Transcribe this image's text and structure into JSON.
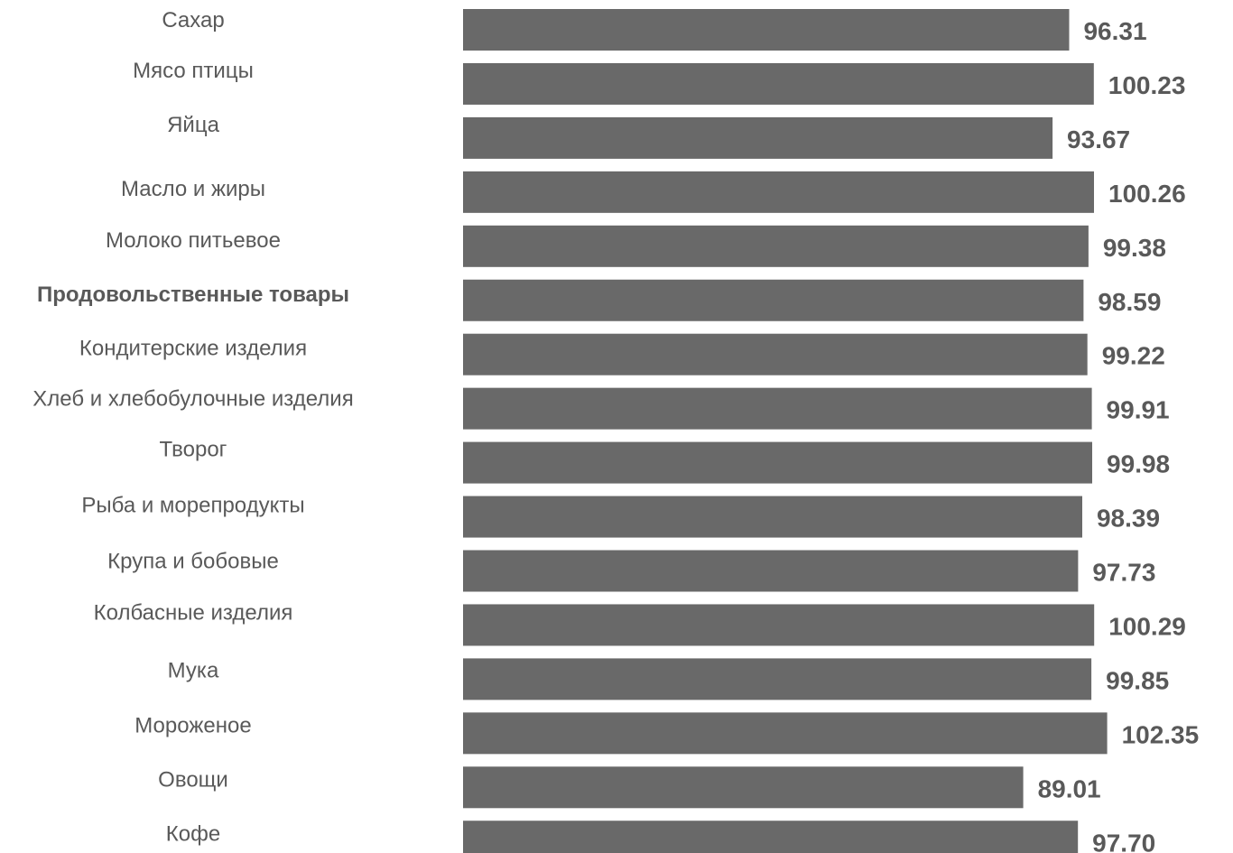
{
  "chart_data": {
    "type": "bar",
    "orientation": "horizontal",
    "categories": [
      "Сахар",
      "Мясо птицы",
      "Яйца",
      "Масло и жиры",
      "Молоко питьевое",
      "Продовольственные товары",
      "Кондитерские изделия",
      "Хлеб и хлебобулочные изделия",
      "Творог",
      "Рыба и морепродукты",
      "Крупа и бобовые",
      "Колбасные изделия",
      "Мука",
      "Мороженое",
      "Овощи",
      "Кофе"
    ],
    "values": [
      96.31,
      100.23,
      93.67,
      100.26,
      99.38,
      98.59,
      99.22,
      99.91,
      99.98,
      98.39,
      97.73,
      100.29,
      99.85,
      102.35,
      89.01,
      97.7
    ],
    "value_labels": [
      "96.31",
      "100.23",
      "93.67",
      "100.26",
      "99.38",
      "98.59",
      "99.22",
      "99.91",
      "99.98",
      "98.39",
      "97.73",
      "100.29",
      "99.85",
      "102.35",
      "89.01",
      "97.70"
    ],
    "highlight_category": "Продовольственные товары",
    "bar_color": "#696969",
    "label_color": "#595959",
    "title": "",
    "xlabel": "",
    "ylabel": "",
    "grid": false,
    "legend": false
  }
}
